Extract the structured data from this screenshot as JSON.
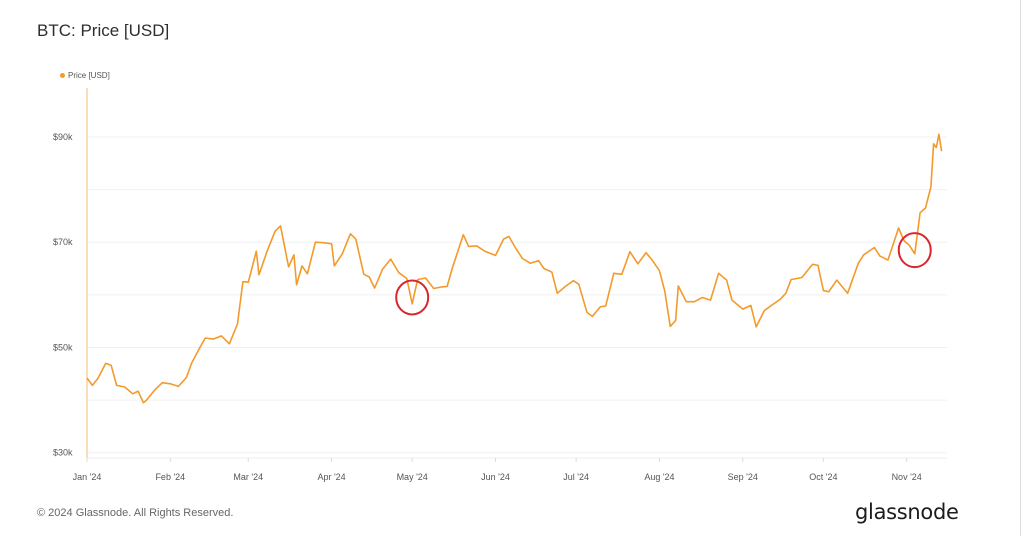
{
  "header": {
    "title": "BTC: Price [USD]"
  },
  "footer": {
    "copyright": "© 2024 Glassnode. All Rights Reserved.",
    "logo_text": "glassnode"
  },
  "colors": {
    "line": "#f39a2b",
    "axis": "#f5c98a",
    "grid": "#f1f1f1",
    "annotation": "#d9262b",
    "text": "#555555"
  },
  "chart_data": {
    "type": "line",
    "title": "BTC: Price [USD]",
    "xlabel": "",
    "ylabel": "",
    "xlim": [
      "2024-01-01",
      "2024-11-16"
    ],
    "ylim": [
      29,
      99.3
    ],
    "y_unit": "thousand USD",
    "grid": true,
    "legend": {
      "position": "top-left",
      "entries": [
        "Price [USD]"
      ]
    },
    "y_ticks": [
      {
        "value": 30,
        "label": "$30k"
      },
      {
        "value": 50,
        "label": "$50k"
      },
      {
        "value": 70,
        "label": "$70k"
      },
      {
        "value": 90,
        "label": "$90k"
      }
    ],
    "y_gridlines": [
      30,
      40,
      50,
      60,
      70,
      80,
      90
    ],
    "x_ticks": [
      {
        "date": "2024-01-01",
        "label": "Jan '24"
      },
      {
        "date": "2024-02-01",
        "label": "Feb '24"
      },
      {
        "date": "2024-03-01",
        "label": "Mar '24"
      },
      {
        "date": "2024-04-01",
        "label": "Apr '24"
      },
      {
        "date": "2024-05-01",
        "label": "May '24"
      },
      {
        "date": "2024-06-01",
        "label": "Jun '24"
      },
      {
        "date": "2024-07-01",
        "label": "Jul '24"
      },
      {
        "date": "2024-08-01",
        "label": "Aug '24"
      },
      {
        "date": "2024-09-01",
        "label": "Sep '24"
      },
      {
        "date": "2024-10-01",
        "label": "Oct '24"
      },
      {
        "date": "2024-11-01",
        "label": "Nov '24"
      }
    ],
    "series": [
      {
        "name": "Price [USD]",
        "points": [
          [
            "2024-01-01",
            44.2
          ],
          [
            "2024-01-03",
            42.8
          ],
          [
            "2024-01-05",
            44.1
          ],
          [
            "2024-01-08",
            47.0
          ],
          [
            "2024-01-10",
            46.6
          ],
          [
            "2024-01-12",
            42.8
          ],
          [
            "2024-01-15",
            42.5
          ],
          [
            "2024-01-18",
            41.2
          ],
          [
            "2024-01-20",
            41.7
          ],
          [
            "2024-01-22",
            39.5
          ],
          [
            "2024-01-23",
            39.9
          ],
          [
            "2024-01-26",
            41.8
          ],
          [
            "2024-01-29",
            43.3
          ],
          [
            "2024-02-01",
            43.1
          ],
          [
            "2024-02-04",
            42.6
          ],
          [
            "2024-02-07",
            44.3
          ],
          [
            "2024-02-09",
            47.1
          ],
          [
            "2024-02-12",
            50.0
          ],
          [
            "2024-02-14",
            51.8
          ],
          [
            "2024-02-17",
            51.6
          ],
          [
            "2024-02-20",
            52.2
          ],
          [
            "2024-02-23",
            50.7
          ],
          [
            "2024-02-26",
            54.5
          ],
          [
            "2024-02-28",
            62.5
          ],
          [
            "2024-03-01",
            62.4
          ],
          [
            "2024-03-04",
            68.3
          ],
          [
            "2024-03-05",
            63.8
          ],
          [
            "2024-03-08",
            68.3
          ],
          [
            "2024-03-11",
            72.1
          ],
          [
            "2024-03-13",
            73.1
          ],
          [
            "2024-03-16",
            65.3
          ],
          [
            "2024-03-18",
            67.6
          ],
          [
            "2024-03-19",
            61.9
          ],
          [
            "2024-03-21",
            65.5
          ],
          [
            "2024-03-23",
            64.0
          ],
          [
            "2024-03-26",
            70.0
          ],
          [
            "2024-03-29",
            69.9
          ],
          [
            "2024-04-01",
            69.7
          ],
          [
            "2024-04-02",
            65.5
          ],
          [
            "2024-04-05",
            67.8
          ],
          [
            "2024-04-08",
            71.6
          ],
          [
            "2024-04-10",
            70.6
          ],
          [
            "2024-04-13",
            63.9
          ],
          [
            "2024-04-15",
            63.4
          ],
          [
            "2024-04-17",
            61.3
          ],
          [
            "2024-04-20",
            64.9
          ],
          [
            "2024-04-23",
            66.8
          ],
          [
            "2024-04-26",
            64.2
          ],
          [
            "2024-04-29",
            63.1
          ],
          [
            "2024-05-01",
            58.3
          ],
          [
            "2024-05-03",
            62.9
          ],
          [
            "2024-05-06",
            63.2
          ],
          [
            "2024-05-09",
            61.2
          ],
          [
            "2024-05-12",
            61.5
          ],
          [
            "2024-05-14",
            61.6
          ],
          [
            "2024-05-16",
            65.2
          ],
          [
            "2024-05-20",
            71.4
          ],
          [
            "2024-05-22",
            69.2
          ],
          [
            "2024-05-25",
            69.3
          ],
          [
            "2024-05-28",
            68.3
          ],
          [
            "2024-06-01",
            67.5
          ],
          [
            "2024-06-04",
            70.6
          ],
          [
            "2024-06-06",
            71.1
          ],
          [
            "2024-06-08",
            69.3
          ],
          [
            "2024-06-11",
            66.9
          ],
          [
            "2024-06-14",
            66.0
          ],
          [
            "2024-06-17",
            66.5
          ],
          [
            "2024-06-19",
            65.0
          ],
          [
            "2024-06-22",
            64.3
          ],
          [
            "2024-06-24",
            60.3
          ],
          [
            "2024-06-27",
            61.6
          ],
          [
            "2024-06-30",
            62.7
          ],
          [
            "2024-07-02",
            62.0
          ],
          [
            "2024-07-05",
            56.7
          ],
          [
            "2024-07-07",
            55.9
          ],
          [
            "2024-07-10",
            57.7
          ],
          [
            "2024-07-12",
            57.9
          ],
          [
            "2024-07-15",
            64.1
          ],
          [
            "2024-07-18",
            63.9
          ],
          [
            "2024-07-21",
            68.2
          ],
          [
            "2024-07-24",
            65.9
          ],
          [
            "2024-07-27",
            68.0
          ],
          [
            "2024-07-29",
            66.8
          ],
          [
            "2024-08-01",
            64.6
          ],
          [
            "2024-08-03",
            60.7
          ],
          [
            "2024-08-05",
            54.0
          ],
          [
            "2024-08-07",
            55.1
          ],
          [
            "2024-08-08",
            61.7
          ],
          [
            "2024-08-11",
            58.7
          ],
          [
            "2024-08-14",
            58.7
          ],
          [
            "2024-08-17",
            59.5
          ],
          [
            "2024-08-20",
            59.0
          ],
          [
            "2024-08-23",
            64.1
          ],
          [
            "2024-08-26",
            62.8
          ],
          [
            "2024-08-28",
            59.0
          ],
          [
            "2024-09-01",
            57.3
          ],
          [
            "2024-09-04",
            58.0
          ],
          [
            "2024-09-06",
            53.9
          ],
          [
            "2024-09-09",
            57.0
          ],
          [
            "2024-09-12",
            58.1
          ],
          [
            "2024-09-15",
            59.2
          ],
          [
            "2024-09-17",
            60.3
          ],
          [
            "2024-09-19",
            62.9
          ],
          [
            "2024-09-23",
            63.3
          ],
          [
            "2024-09-27",
            65.8
          ],
          [
            "2024-09-29",
            65.6
          ],
          [
            "2024-10-01",
            60.8
          ],
          [
            "2024-10-03",
            60.6
          ],
          [
            "2024-10-06",
            62.8
          ],
          [
            "2024-10-10",
            60.3
          ],
          [
            "2024-10-14",
            66.0
          ],
          [
            "2024-10-16",
            67.6
          ],
          [
            "2024-10-20",
            69.0
          ],
          [
            "2024-10-22",
            67.4
          ],
          [
            "2024-10-25",
            66.6
          ],
          [
            "2024-10-29",
            72.7
          ],
          [
            "2024-10-31",
            70.3
          ],
          [
            "2024-11-02",
            69.4
          ],
          [
            "2024-11-04",
            67.8
          ],
          [
            "2024-11-06",
            75.6
          ],
          [
            "2024-11-08",
            76.5
          ],
          [
            "2024-11-10",
            80.5
          ],
          [
            "2024-11-11",
            88.7
          ],
          [
            "2024-11-12",
            88.0
          ],
          [
            "2024-11-13",
            90.5
          ],
          [
            "2024-11-14",
            87.3
          ]
        ]
      }
    ],
    "annotations": [
      {
        "shape": "circle",
        "date": "2024-05-01",
        "value": 59.5,
        "color": "#d9262b"
      },
      {
        "shape": "circle",
        "date": "2024-11-04",
        "value": 68.5,
        "color": "#d9262b"
      }
    ]
  }
}
